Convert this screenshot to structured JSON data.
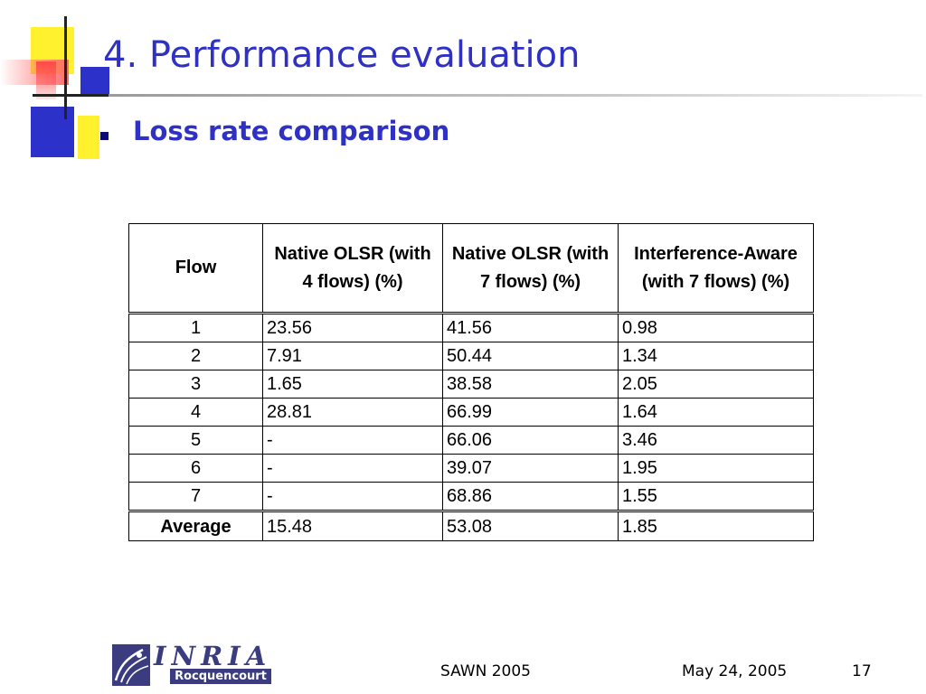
{
  "slide": {
    "title": "4. Performance evaluation",
    "subtitle": "Loss rate comparison"
  },
  "table": {
    "headers": [
      "Flow",
      "Native OLSR (with 4 flows) (%)",
      "Native OLSR (with 7 flows) (%)",
      "Interference-Aware (with 7 flows) (%)"
    ],
    "rows": [
      [
        "1",
        "23.56",
        "41.56",
        "0.98"
      ],
      [
        "2",
        "7.91",
        "50.44",
        "1.34"
      ],
      [
        "3",
        "1.65",
        "38.58",
        "2.05"
      ],
      [
        "4",
        "28.81",
        "66.99",
        "1.64"
      ],
      [
        "5",
        "-",
        "66.06",
        "3.46"
      ],
      [
        "6",
        "-",
        "39.07",
        "1.95"
      ],
      [
        "7",
        "-",
        "68.86",
        "1.55"
      ]
    ],
    "average": [
      "Average",
      "15.48",
      "53.08",
      "1.85"
    ]
  },
  "logo": {
    "name": "INRIA",
    "sub": "Rocquencourt"
  },
  "footer": {
    "event": "SAWN 2005",
    "date": "May 24, 2005",
    "page": "17"
  },
  "colors": {
    "title": "#2e31c4",
    "accent_yellow": "#fff12e",
    "accent_blue": "#2b31c9",
    "accent_red": "#ff4a4a",
    "logo": "#3b3c80"
  },
  "icons": {
    "bullet": "square-bullet-icon",
    "logo_mark": "inria-logo-mark-icon"
  }
}
